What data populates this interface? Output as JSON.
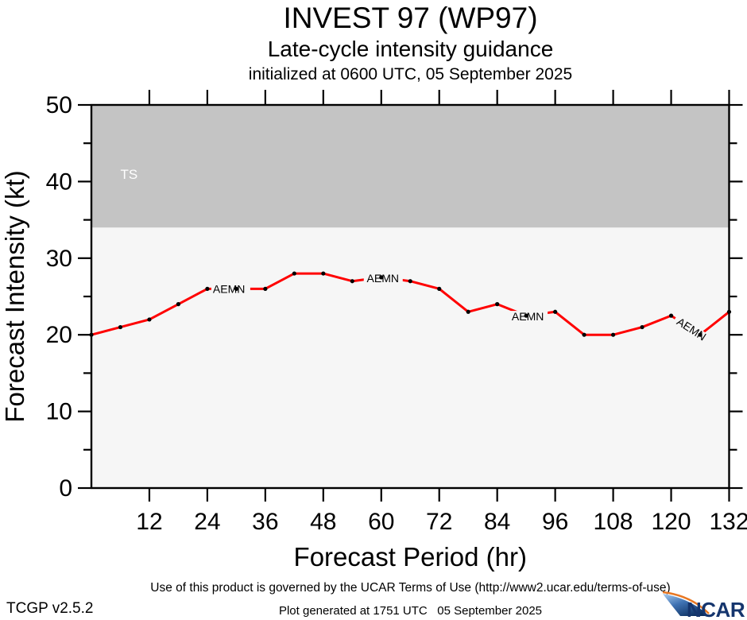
{
  "header": {
    "title": "INVEST 97 (WP97)",
    "subtitle": "Late-cycle intensity guidance",
    "init_line": "initialized at 0600 UTC, 05 September 2025"
  },
  "footer": {
    "terms": "Use of this product is governed by the UCAR Terms of Use (http://www2.ucar.edu/terms-of-use)",
    "app_version": "TCGP v2.5.2",
    "generated": "Plot generated at 1751 UTC   05 September 2025",
    "ncar_label": "NCAR"
  },
  "colors": {
    "line_red": "#ff0000",
    "dot_black": "#000000",
    "ts_band_gray": "#c4c4c4",
    "plot_bg": "#f6f6f6",
    "frame": "#000000",
    "ts_text": "#ffffff",
    "ncar_navy": "#15356d",
    "ncar_orange": "#e87722",
    "ncar_light_blue": "#a9cdf0",
    "ncar_dark_blue": "#0b2d5c"
  },
  "chart_data": {
    "type": "line",
    "title": "INVEST 97 (WP97)",
    "subtitle": "Late-cycle intensity guidance",
    "annotation_init": "initialized at 0600 UTC, 05 September 2025",
    "xlabel": "Forecast Period (hr)",
    "ylabel": "Forecast Intensity (kt)",
    "xlim": [
      0,
      132
    ],
    "ylim": [
      0,
      50
    ],
    "x_ticks": [
      12,
      24,
      36,
      48,
      60,
      72,
      84,
      96,
      108,
      120,
      132
    ],
    "y_ticks": [
      0,
      10,
      20,
      30,
      40,
      50
    ],
    "y_minor_ticks": [
      5,
      15,
      25,
      35,
      45
    ],
    "grid": false,
    "ts_threshold": 34,
    "ts_label": "TS",
    "legend_position": "inline-labels",
    "series": [
      {
        "name": "AEMN",
        "color": "#ff0000",
        "x": [
          0,
          6,
          12,
          18,
          24,
          30,
          36,
          42,
          48,
          54,
          60,
          66,
          72,
          78,
          84,
          90,
          96,
          102,
          108,
          114,
          120,
          126,
          132
        ],
        "values": [
          20,
          21,
          22,
          24,
          26,
          26,
          26,
          28,
          28,
          27,
          27.5,
          27,
          26,
          23,
          24,
          22.5,
          23,
          20,
          20,
          21,
          22.5,
          20,
          23
        ]
      }
    ],
    "series_labels": [
      {
        "text": "AEMN",
        "hour": 24,
        "mode": "after"
      },
      {
        "text": "AEMN",
        "hour": 60,
        "mode": "center"
      },
      {
        "text": "AEMN",
        "hour": 90,
        "mode": "center"
      },
      {
        "text": "AEMN",
        "hour": 120,
        "mode": "rotated",
        "angle": 33
      }
    ]
  }
}
